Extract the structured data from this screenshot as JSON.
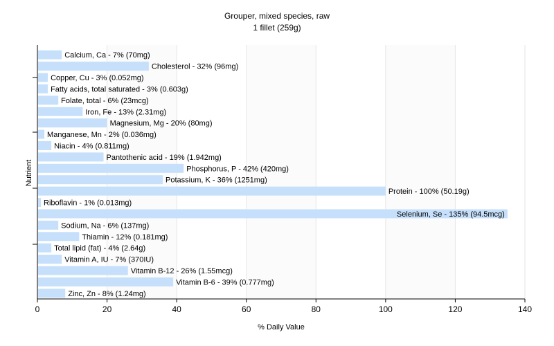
{
  "chart_data": {
    "type": "bar",
    "orientation": "horizontal",
    "title": "Grouper, mixed species, raw",
    "subtitle": "1 fillet (259g)",
    "xlabel": "% Daily Value",
    "ylabel": "Nutrient",
    "xlim": [
      0,
      140
    ],
    "xticks": [
      0,
      20,
      40,
      60,
      80,
      100,
      120,
      140
    ],
    "grid": true,
    "bar_color": "#c6e0fb",
    "categories": [
      "Calcium, Ca",
      "Cholesterol",
      "Copper, Cu",
      "Fatty acids, total saturated",
      "Folate, total",
      "Iron, Fe",
      "Magnesium, Mg",
      "Manganese, Mn",
      "Niacin",
      "Pantothenic acid",
      "Phosphorus, P",
      "Potassium, K",
      "Protein",
      "Riboflavin",
      "Selenium, Se",
      "Sodium, Na",
      "Thiamin",
      "Total lipid (fat)",
      "Vitamin A, IU",
      "Vitamin B-12",
      "Vitamin B-6",
      "Zinc, Zn"
    ],
    "values": [
      7,
      32,
      3,
      3,
      6,
      13,
      20,
      2,
      4,
      19,
      42,
      36,
      100,
      1,
      135,
      6,
      12,
      4,
      7,
      26,
      39,
      8
    ],
    "labels": [
      "Calcium, Ca - 7% (70mg)",
      "Cholesterol - 32% (96mg)",
      "Copper, Cu - 3% (0.052mg)",
      "Fatty acids, total saturated - 3% (0.603g)",
      "Folate, total - 6% (23mcg)",
      "Iron, Fe - 13% (2.31mg)",
      "Magnesium, Mg - 20% (80mg)",
      "Manganese, Mn - 2% (0.036mg)",
      "Niacin - 4% (0.811mg)",
      "Pantothenic acid - 19% (1.942mg)",
      "Phosphorus, P - 42% (420mg)",
      "Potassium, K - 36% (1251mg)",
      "Protein - 100% (50.19g)",
      "Riboflavin - 1% (0.013mg)",
      "Selenium, Se - 135% (94.5mcg)",
      "Sodium, Na - 6% (137mg)",
      "Thiamin - 12% (0.181mg)",
      "Total lipid (fat) - 4% (2.64g)",
      "Vitamin A, IU - 7% (370IU)",
      "Vitamin B-12 - 26% (1.55mcg)",
      "Vitamin B-6 - 39% (0.777mg)",
      "Zinc, Zn - 8% (1.24mg)"
    ]
  }
}
